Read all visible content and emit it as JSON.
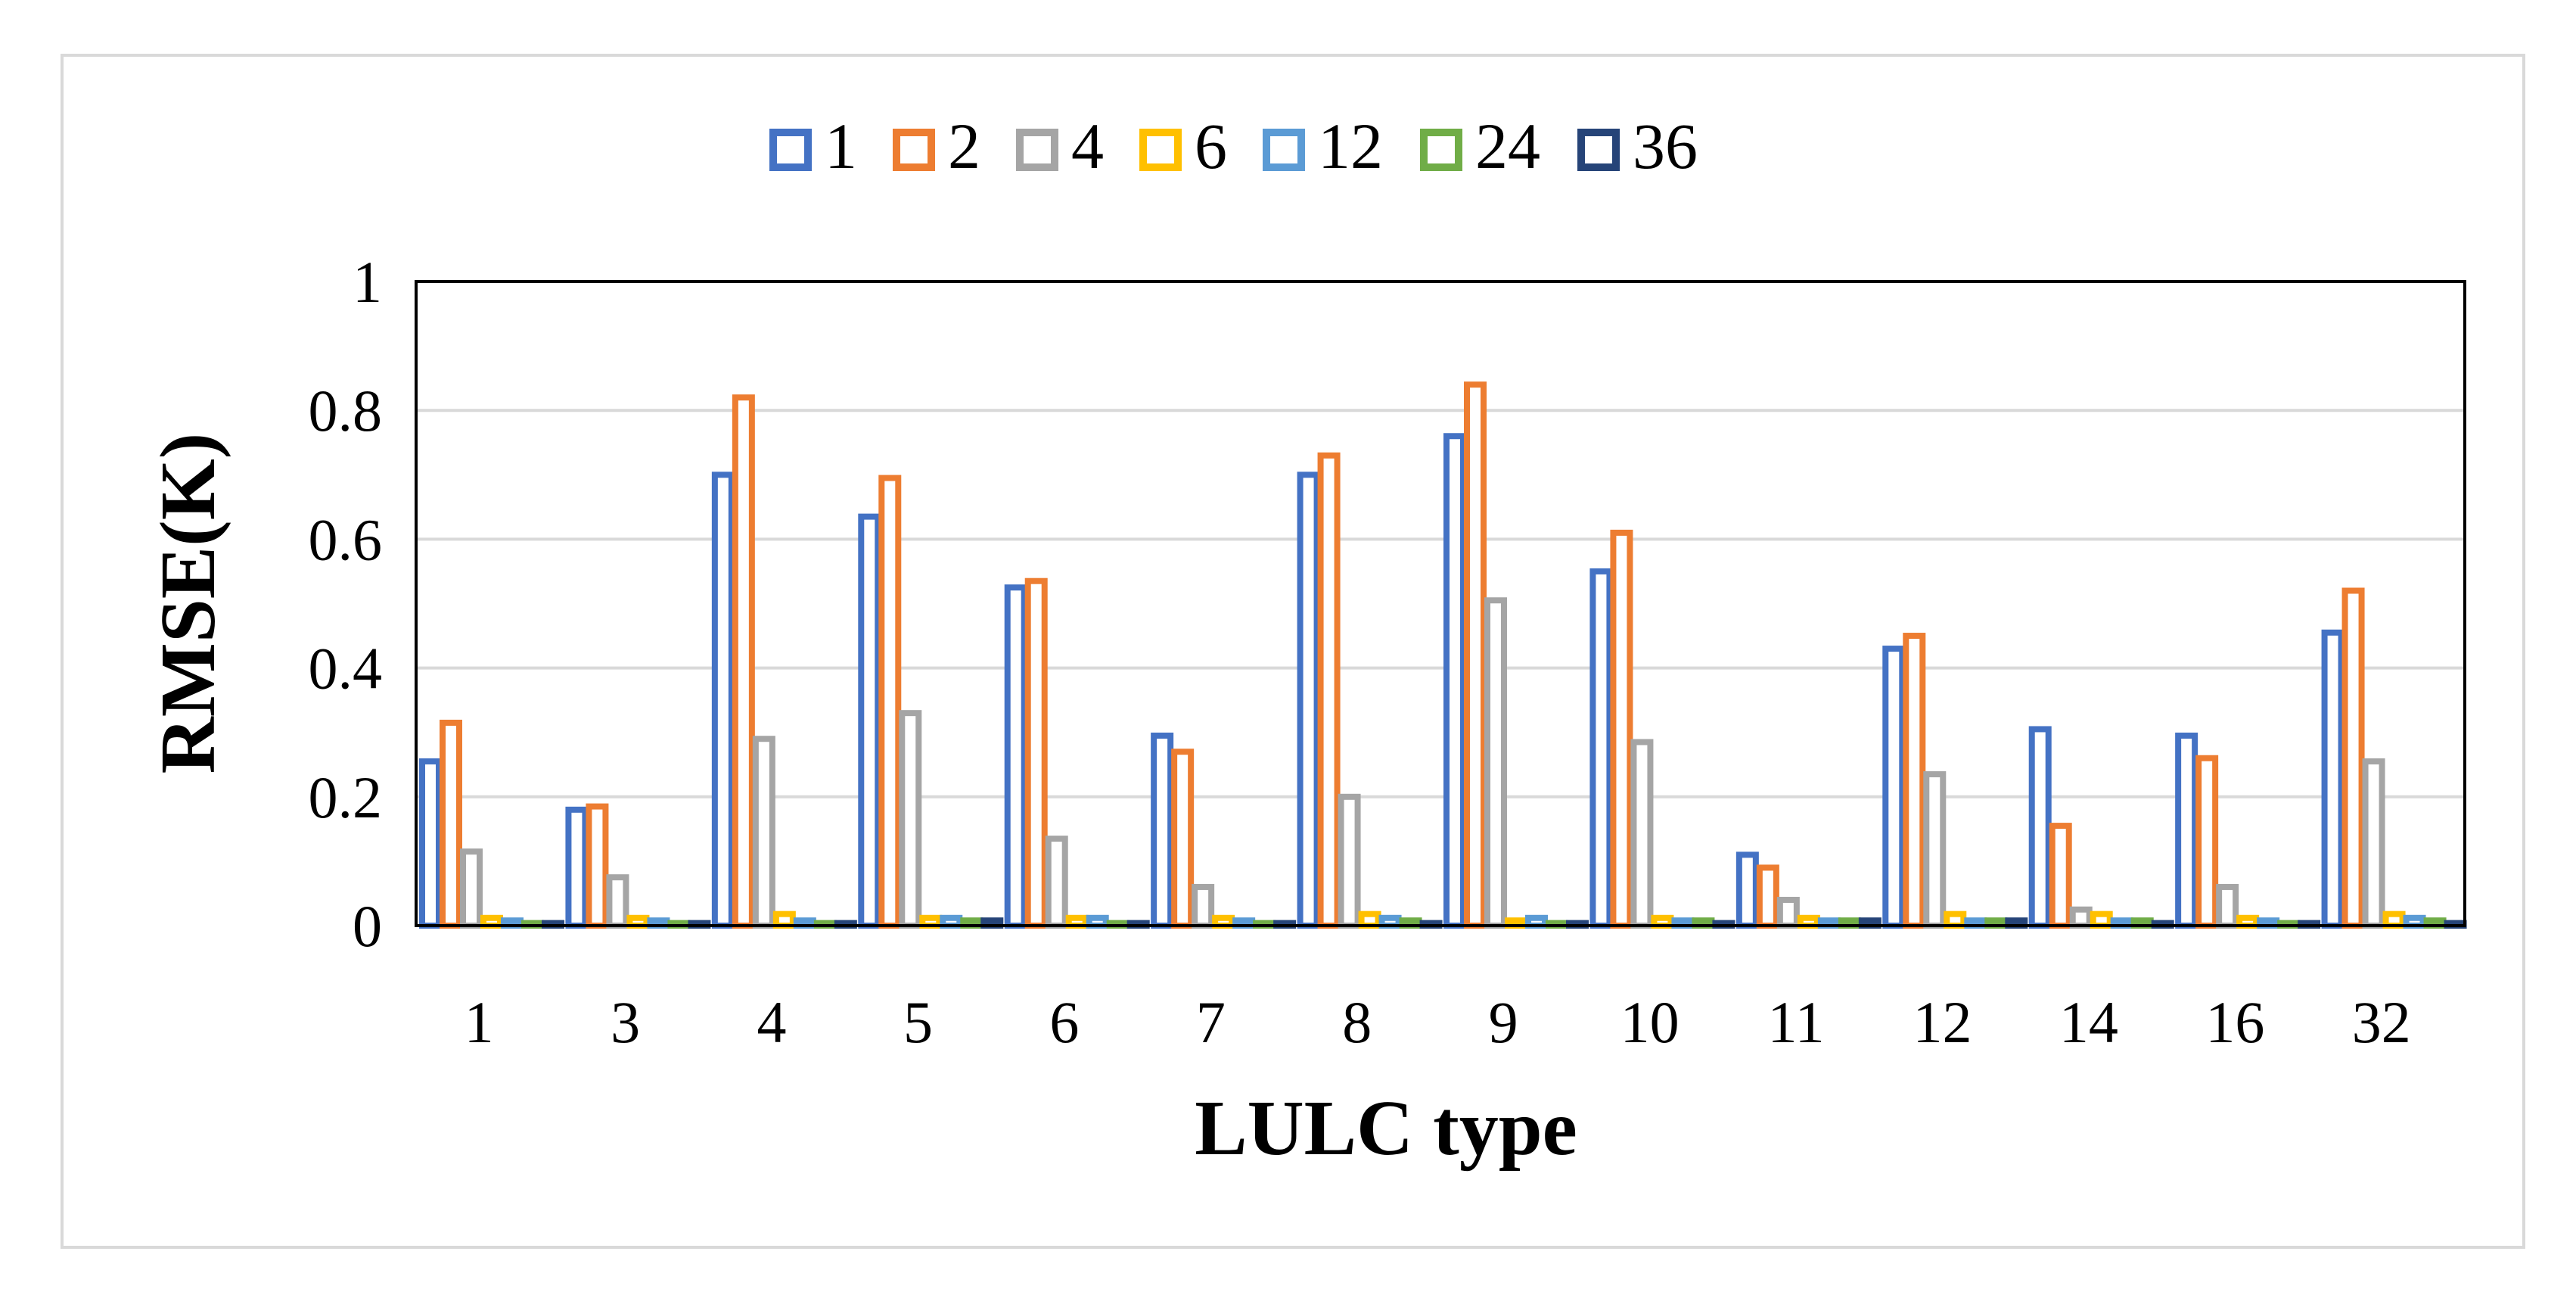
{
  "chart_data": {
    "type": "bar",
    "title": "",
    "xlabel": "LULC type",
    "ylabel": "RMSE(K)",
    "ylim": [
      0,
      1
    ],
    "yticks": [
      0,
      0.2,
      0.4,
      0.6,
      0.8,
      1
    ],
    "ytick_labels": [
      "0",
      "0.2",
      "0.4",
      "0.6",
      "0.8",
      "1"
    ],
    "grid": true,
    "legend_position": "top-center",
    "categories": [
      "1",
      "3",
      "4",
      "5",
      "6",
      "7",
      "8",
      "9",
      "10",
      "11",
      "12",
      "14",
      "16",
      "32"
    ],
    "series": [
      {
        "name": "1",
        "color": "#4472C4",
        "values": [
          0.255,
          0.18,
          0.7,
          0.635,
          0.525,
          0.295,
          0.7,
          0.76,
          0.55,
          0.11,
          0.43,
          0.305,
          0.295,
          0.455
        ]
      },
      {
        "name": "2",
        "color": "#ED7D31",
        "values": [
          0.315,
          0.185,
          0.82,
          0.695,
          0.535,
          0.27,
          0.73,
          0.84,
          0.61,
          0.09,
          0.45,
          0.155,
          0.26,
          0.52
        ]
      },
      {
        "name": "4",
        "color": "#A5A5A5",
        "values": [
          0.115,
          0.075,
          0.29,
          0.33,
          0.135,
          0.06,
          0.2,
          0.505,
          0.285,
          0.04,
          0.235,
          0.025,
          0.06,
          0.255
        ]
      },
      {
        "name": "6",
        "color": "#FFC000",
        "values": [
          0.012,
          0.012,
          0.018,
          0.012,
          0.012,
          0.012,
          0.018,
          0.008,
          0.012,
          0.012,
          0.018,
          0.018,
          0.012,
          0.018
        ]
      },
      {
        "name": "12",
        "color": "#5B9BD5",
        "values": [
          0.008,
          0.008,
          0.008,
          0.012,
          0.012,
          0.008,
          0.012,
          0.012,
          0.008,
          0.008,
          0.008,
          0.008,
          0.008,
          0.012
        ]
      },
      {
        "name": "24",
        "color": "#70AD47",
        "values": [
          0.004,
          0.004,
          0.004,
          0.008,
          0.004,
          0.004,
          0.008,
          0.004,
          0.008,
          0.008,
          0.008,
          0.008,
          0.004,
          0.008
        ]
      },
      {
        "name": "36",
        "color": "#264478",
        "values": [
          0.004,
          0.004,
          0.004,
          0.008,
          0.004,
          0.004,
          0.004,
          0.004,
          0.004,
          0.008,
          0.008,
          0.004,
          0.004,
          0.004
        ]
      }
    ]
  }
}
